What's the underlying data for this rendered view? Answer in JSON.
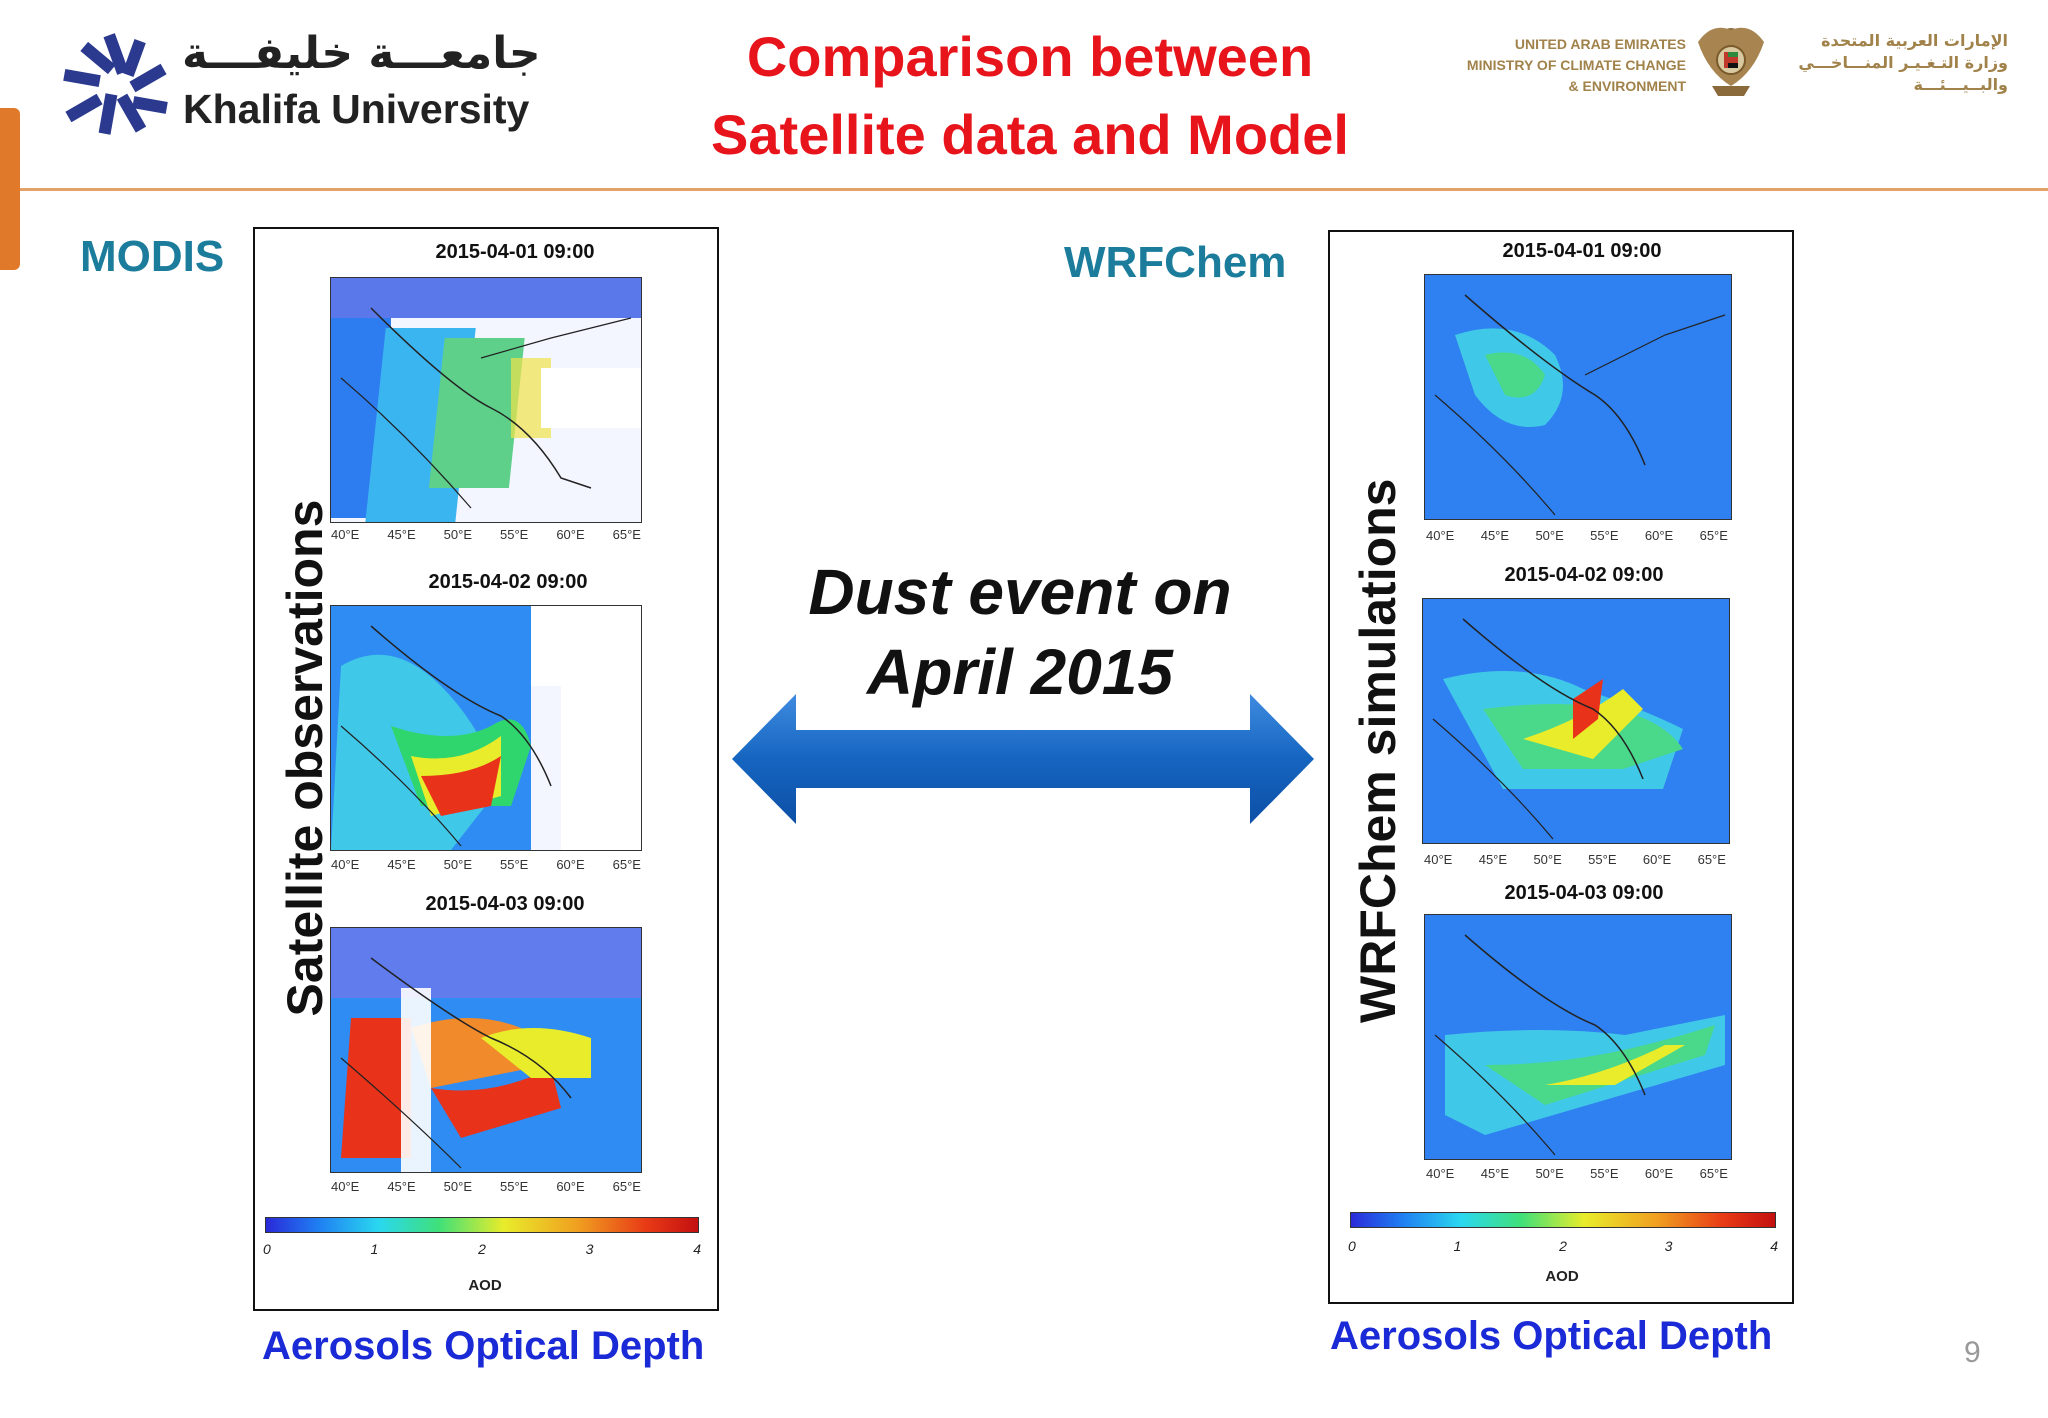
{
  "header": {
    "university_ar": "جامعـــة خليفـــة",
    "university_en": "Khalifa University",
    "title_line1": "Comparison between",
    "title_line2": "Satellite data and Model",
    "ministry_en": [
      "UNITED ARAB EMIRATES",
      "MINISTRY OF CLIMATE CHANGE",
      "& ENVIRONMENT"
    ],
    "ministry_ar": [
      "الإمارات العربية المتحدة",
      "وزارة التـغـيـر المنـــاخـــي",
      "والبــيـــئـــة"
    ]
  },
  "left": {
    "label": "MODIS",
    "vertical_label": "Satellite observations",
    "maps": [
      {
        "title": "2015-04-01 09:00"
      },
      {
        "title": "2015-04-02 09:00"
      },
      {
        "title": "2015-04-03 09:00"
      }
    ],
    "longitude_ticks": [
      "40°E",
      "45°E",
      "50°E",
      "55°E",
      "60°E",
      "65°E"
    ],
    "colorbar_ticks": [
      "0",
      "1",
      "2",
      "3",
      "4"
    ],
    "colorbar_label": "AOD",
    "caption": "Aerosols Optical Depth"
  },
  "right": {
    "label": "WRFChem",
    "vertical_label": "WRFChem simulations",
    "maps": [
      {
        "title": "2015-04-01 09:00"
      },
      {
        "title": "2015-04-02 09:00"
      },
      {
        "title": "2015-04-03 09:00"
      }
    ],
    "longitude_ticks": [
      "40°E",
      "45°E",
      "50°E",
      "55°E",
      "60°E",
      "65°E"
    ],
    "colorbar_ticks": [
      "0",
      "1",
      "2",
      "3",
      "4"
    ],
    "colorbar_label": "AOD",
    "caption": "Aerosols Optical Depth"
  },
  "center": {
    "line1": "Dust event on",
    "line2": "April 2015"
  },
  "page_number": "9",
  "colors": {
    "title_red": "#e8141c",
    "section_teal": "#1b7c9c",
    "caption_blue": "#1a2ad6",
    "arrow_blue": "#1565c0",
    "accent_orange": "#e07a2a"
  }
}
